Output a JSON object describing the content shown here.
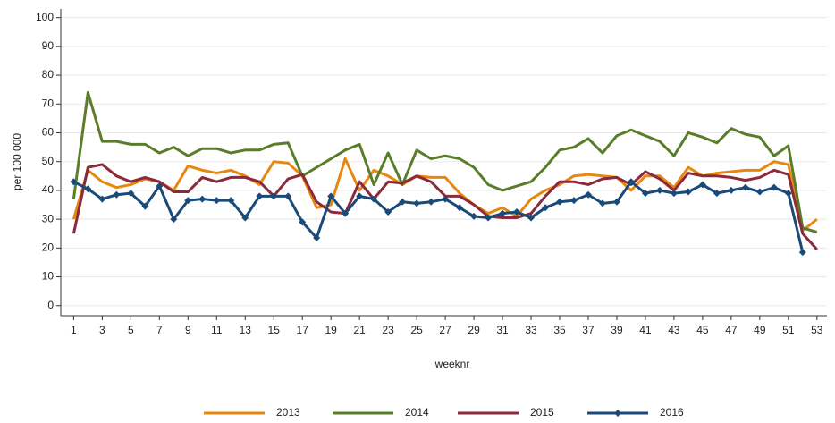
{
  "chart_data": {
    "type": "line",
    "x_label": "weeknr",
    "y_label": "per 100 000",
    "x": [
      1,
      2,
      3,
      4,
      5,
      6,
      7,
      8,
      9,
      10,
      11,
      12,
      13,
      14,
      15,
      16,
      17,
      18,
      19,
      20,
      21,
      22,
      23,
      24,
      25,
      26,
      27,
      28,
      29,
      30,
      31,
      32,
      33,
      34,
      35,
      36,
      37,
      38,
      39,
      40,
      41,
      42,
      43,
      44,
      45,
      46,
      47,
      48,
      49,
      50,
      51,
      52,
      53
    ],
    "xlim": [
      0.1,
      53.7
    ],
    "xticks": [
      1,
      3,
      5,
      7,
      9,
      11,
      13,
      15,
      17,
      19,
      21,
      23,
      25,
      27,
      29,
      31,
      33,
      35,
      37,
      39,
      41,
      43,
      45,
      47,
      49,
      51,
      53
    ],
    "ylim": [
      -3.5,
      103
    ],
    "yticks": [
      0,
      10,
      20,
      30,
      40,
      50,
      60,
      70,
      80,
      90,
      100
    ],
    "grid": true,
    "legend": "bottom",
    "series": [
      {
        "name": "2013",
        "color": "#e8870e",
        "marker": false,
        "values": [
          30,
          47,
          43,
          41,
          42,
          44,
          43,
          40,
          48.5,
          47,
          46,
          47,
          45,
          42,
          50,
          49.5,
          45,
          34,
          35,
          51,
          40,
          47,
          45,
          42,
          45,
          44.5,
          44.5,
          39,
          35,
          32,
          34,
          31,
          37,
          40,
          42,
          45,
          45.5,
          45,
          44.5,
          40,
          45,
          45,
          41,
          48,
          45,
          46,
          46.5,
          47,
          47,
          50,
          49,
          26,
          30
        ]
      },
      {
        "name": "2014",
        "color": "#5a7d2a",
        "marker": false,
        "values": [
          37,
          74,
          57,
          57,
          56,
          56,
          53,
          55,
          52,
          54.5,
          54.5,
          53,
          54,
          54,
          56,
          56.5,
          45,
          48,
          51,
          54,
          56,
          42,
          53,
          42,
          54,
          51,
          52,
          51,
          48,
          42,
          40,
          41.5,
          43,
          48,
          54,
          55,
          58,
          53,
          59,
          61,
          59,
          57,
          52,
          60,
          58.5,
          56.5,
          61.5,
          59.5,
          58.5,
          52,
          55.5,
          27,
          25.5
        ]
      },
      {
        "name": "2015",
        "color": "#8b2a3a",
        "marker": false,
        "values": [
          25,
          48,
          49,
          45,
          43,
          44.5,
          43,
          39.5,
          39.5,
          44.5,
          43,
          44.5,
          44.5,
          43,
          38,
          44,
          45.5,
          36,
          32.5,
          32,
          43,
          37,
          43,
          42.5,
          45,
          43,
          38,
          38,
          35,
          31,
          30.5,
          30.5,
          32,
          38,
          43,
          43,
          42,
          44,
          44.5,
          42,
          46.5,
          44,
          40,
          46,
          45,
          45,
          44.5,
          43.5,
          44.5,
          47,
          45.5,
          25,
          19.5
        ]
      },
      {
        "name": "2016",
        "color": "#1a4a78",
        "marker": true,
        "values": [
          43,
          40.5,
          37,
          38.5,
          39,
          34.5,
          41.5,
          30,
          36.5,
          37,
          36.5,
          36.5,
          30.5,
          38,
          38,
          38,
          29,
          23.5,
          38,
          32,
          38,
          37,
          32.5,
          36,
          35.5,
          36,
          37,
          34,
          31,
          30.5,
          32,
          32.5,
          30.5,
          34,
          36,
          36.5,
          38.5,
          35.5,
          36,
          43,
          39,
          40,
          39,
          39.5,
          42,
          39,
          40,
          41,
          39.5,
          41,
          39,
          18.5,
          null
        ]
      }
    ]
  }
}
